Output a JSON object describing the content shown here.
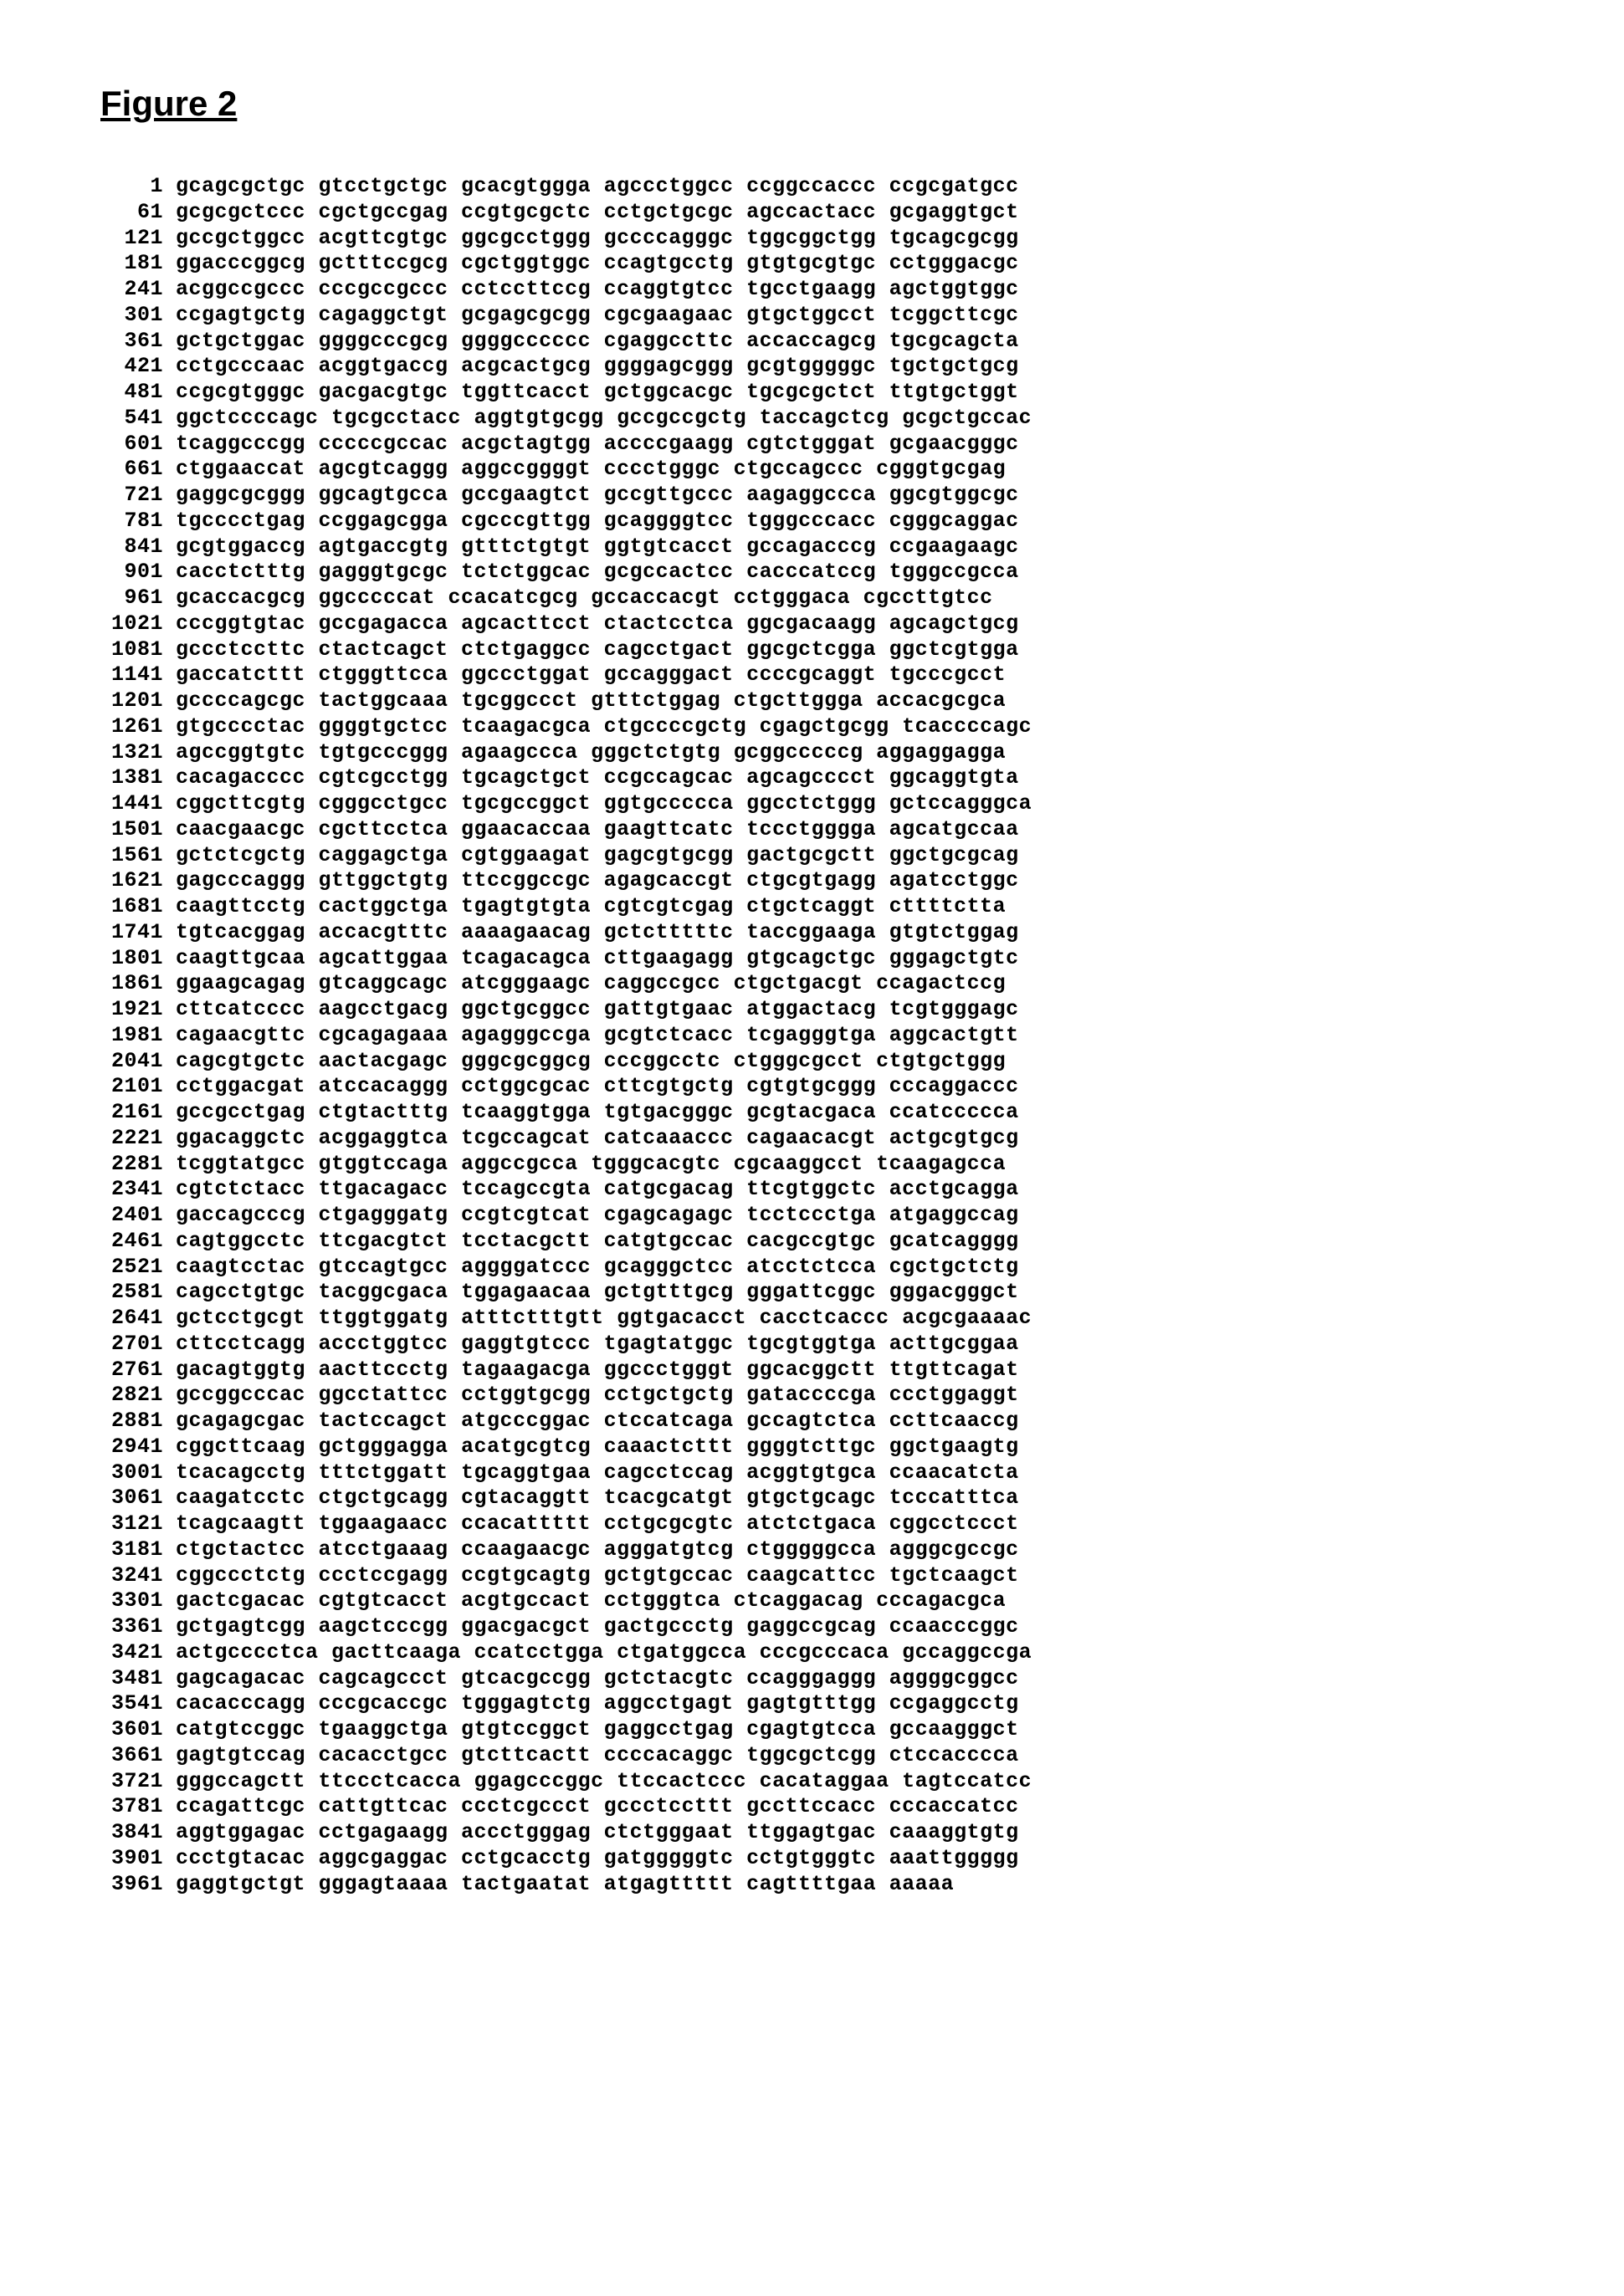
{
  "figure": {
    "title": "Figure 2",
    "font_family_title": "Arial",
    "font_family_seq": "Courier New",
    "title_fontsize": 42,
    "seq_fontsize": 25,
    "background_color": "#ffffff",
    "text_color": "#000000",
    "block_size": 10,
    "blocks_per_row": 6,
    "rows": [
      {
        "pos": 1,
        "blocks": [
          "gcagcgctgc",
          "gtcctgctgc",
          "gcacgtggga",
          "agccctggcc",
          "ccggccaccc",
          "ccgcgatgcc"
        ]
      },
      {
        "pos": 61,
        "blocks": [
          "gcgcgctccc",
          "cgctgccgag",
          "ccgtgcgctc",
          "cctgctgcgc",
          "agccactacc",
          "gcgaggtgct"
        ]
      },
      {
        "pos": 121,
        "blocks": [
          "gccgctggcc",
          "acgttcgtgc",
          "ggcgcctggg",
          "gccccagggc",
          "tggcggctgg",
          "tgcagcgcgg"
        ]
      },
      {
        "pos": 181,
        "blocks": [
          "ggacccggcg",
          "gctttccgcg",
          "cgctggtggc",
          "ccagtgcctg",
          "gtgtgcgtgc",
          "cctgggacgc"
        ]
      },
      {
        "pos": 241,
        "blocks": [
          "acggccgccc",
          "cccgccgccc",
          "cctccttccg",
          "ccaggtgtcc",
          "tgcctgaagg",
          "agctggtggc"
        ]
      },
      {
        "pos": 301,
        "blocks": [
          "ccgagtgctg",
          "cagaggctgt",
          "gcgagcgcgg",
          "cgcgaagaac",
          "gtgctggcct",
          "tcggcttcgc"
        ]
      },
      {
        "pos": 361,
        "blocks": [
          "gctgctggac",
          "ggggcccgcg",
          "ggggcccccc",
          "cgaggccttc",
          "accaccagcg",
          "tgcgcagcta"
        ]
      },
      {
        "pos": 421,
        "blocks": [
          "cctgcccaac",
          "acggtgaccg",
          "acgcactgcg",
          "ggggagcggg",
          "gcgtgggggc",
          "tgctgctgcg"
        ]
      },
      {
        "pos": 481,
        "blocks": [
          "ccgcgtgggc",
          "gacgacgtgc",
          "tggttcacct",
          "gctggcacgc",
          "tgcgcgctct",
          "ttgtgctggt"
        ]
      },
      {
        "pos": 541,
        "blocks": [
          "ggctccccagc",
          "tgcgcctacc",
          "aggtgtgcgg",
          "gccgccgctg",
          "taccagctcg",
          "gcgctgccac"
        ]
      },
      {
        "pos": 601,
        "blocks": [
          "tcaggcccgg",
          "cccccgccac",
          "acgctagtgg",
          "accccgaagg",
          "cgtctgggat",
          "gcgaacgggc"
        ]
      },
      {
        "pos": 661,
        "blocks": [
          "ctggaaccat",
          "agcgtcaggg",
          "aggccggggt",
          "cccctgggc",
          "ctgccagccc",
          "cgggtgcgag"
        ]
      },
      {
        "pos": 721,
        "blocks": [
          "gaggcgcggg",
          "ggcagtgcca",
          "gccgaagtct",
          "gccgttgccc",
          "aagaggccca",
          "ggcgtggcgc"
        ]
      },
      {
        "pos": 781,
        "blocks": [
          "tgcccctgag",
          "ccggagcgga",
          "cgcccgttgg",
          "gcaggggtcc",
          "tgggcccacc",
          "cgggcaggac"
        ]
      },
      {
        "pos": 841,
        "blocks": [
          "gcgtggaccg",
          "agtgaccgtg",
          "gtttctgtgt",
          "ggtgtcacct",
          "gccagacccg",
          "ccgaagaagc"
        ]
      },
      {
        "pos": 901,
        "blocks": [
          "cacctctttg",
          "gagggtgcgc",
          "tctctggcac",
          "gcgccactcc",
          "cacccatccg",
          "tgggccgcca"
        ]
      },
      {
        "pos": 961,
        "blocks": [
          "gcaccacgcg",
          "ggcccccat",
          "ccacatcgcg",
          "gccaccacgt",
          "cctgggaca",
          "cgccttgtcc"
        ]
      },
      {
        "pos": 1021,
        "blocks": [
          "cccggtgtac",
          "gccgagacca",
          "agcacttcct",
          "ctactcctca",
          "ggcgacaagg",
          "agcagctgcg"
        ]
      },
      {
        "pos": 1081,
        "blocks": [
          "gccctccttc",
          "ctactcagct",
          "ctctgaggcc",
          "cagcctgact",
          "ggcgctcgga",
          "ggctcgtgga"
        ]
      },
      {
        "pos": 1141,
        "blocks": [
          "gaccatcttt",
          "ctgggttcca",
          "ggccctggat",
          "gccagggact",
          "ccccgcaggt",
          "tgcccgcct"
        ]
      },
      {
        "pos": 1201,
        "blocks": [
          "gccccagcgc",
          "tactggcaaa",
          "tgcggccct",
          "gtttctggag",
          "ctgcttggga",
          "accacgcgca"
        ]
      },
      {
        "pos": 1261,
        "blocks": [
          "gtgcccctac",
          "ggggtgctcc",
          "tcaagacgca",
          "ctgccccgctg",
          "cgagctgcgg",
          "tcaccccagc"
        ]
      },
      {
        "pos": 1321,
        "blocks": [
          "agccggtgtc",
          "tgtgcccggg",
          "agaagccca",
          "gggctctgtg",
          "gcggcccccg",
          "aggaggagga"
        ]
      },
      {
        "pos": 1381,
        "blocks": [
          "cacagacccc",
          "cgtcgcctgg",
          "tgcagctgct",
          "ccgccagcac",
          "agcagcccct",
          "ggcaggtgta"
        ]
      },
      {
        "pos": 1441,
        "blocks": [
          "cggcttcgtg",
          "cgggcctgcc",
          "tgcgccggct",
          "ggtgccccca",
          "ggcctctggg",
          "gctccagggca"
        ]
      },
      {
        "pos": 1501,
        "blocks": [
          "caacgaacgc",
          "cgcttcctca",
          "ggaacaccaa",
          "gaagttcatc",
          "tccctgggga",
          "agcatgccaa"
        ]
      },
      {
        "pos": 1561,
        "blocks": [
          "gctctcgctg",
          "caggagctga",
          "cgtggaagat",
          "gagcgtgcgg",
          "gactgcgctt",
          "ggctgcgcag"
        ]
      },
      {
        "pos": 1621,
        "blocks": [
          "gagcccaggg",
          "gttggctgtg",
          "ttccggccgc",
          "agagcaccgt",
          "ctgcgtgagg",
          "agatcctggc"
        ]
      },
      {
        "pos": 1681,
        "blocks": [
          "caagttcctg",
          "cactggctga",
          "tgagtgtgta",
          "cgtcgtcgag",
          "ctgctcaggt",
          "cttttctta"
        ]
      },
      {
        "pos": 1741,
        "blocks": [
          "tgtcacggag",
          "accacgtttc",
          "aaaagaacag",
          "gctctttttc",
          "taccggaaga",
          "gtgtctggag"
        ]
      },
      {
        "pos": 1801,
        "blocks": [
          "caagttgcaa",
          "agcattggaa",
          "tcagacagca",
          "cttgaagagg",
          "gtgcagctgc",
          "gggagctgtc"
        ]
      },
      {
        "pos": 1861,
        "blocks": [
          "ggaagcagag",
          "gtcaggcagc",
          "atcgggaagc",
          "caggccgcc",
          "ctgctgacgt",
          "ccagactccg"
        ]
      },
      {
        "pos": 1921,
        "blocks": [
          "cttcatcccc",
          "aagcctgacg",
          "ggctgcggcc",
          "gattgtgaac",
          "atggactacg",
          "tcgtgggagc"
        ]
      },
      {
        "pos": 1981,
        "blocks": [
          "cagaacgttc",
          "cgcagagaaa",
          "agagggccga",
          "gcgtctcacc",
          "tcgagggtga",
          "aggcactgtt"
        ]
      },
      {
        "pos": 2041,
        "blocks": [
          "cagcgtgctc",
          "aactacgagc",
          "gggcgcggcg",
          "cccggcctc",
          "ctgggcgcct",
          "ctgtgctggg"
        ]
      },
      {
        "pos": 2101,
        "blocks": [
          "cctggacgat",
          "atccacaggg",
          "cctggcgcac",
          "cttcgtgctg",
          "cgtgtgcggg",
          "cccaggaccc"
        ]
      },
      {
        "pos": 2161,
        "blocks": [
          "gccgcctgag",
          "ctgtactttg",
          "tcaaggtgga",
          "tgtgacgggc",
          "gcgtacgaca",
          "ccatccccca"
        ]
      },
      {
        "pos": 2221,
        "blocks": [
          "ggacaggctc",
          "acggaggtca",
          "tcgccagcat",
          "catcaaaccc",
          "cagaacacgt",
          "actgcgtgcg"
        ]
      },
      {
        "pos": 2281,
        "blocks": [
          "tcggtatgcc",
          "gtggtccaga",
          "aggccgcca",
          "tgggcacgtc",
          "cgcaaggcct",
          "tcaagagcca"
        ]
      },
      {
        "pos": 2341,
        "blocks": [
          "cgtctctacc",
          "ttgacagacc",
          "tccagccgta",
          "catgcgacag",
          "ttcgtggctc",
          "acctgcagga"
        ]
      },
      {
        "pos": 2401,
        "blocks": [
          "gaccagcccg",
          "ctgagggatg",
          "ccgtcgtcat",
          "cgagcagagc",
          "tcctccctga",
          "atgaggccag"
        ]
      },
      {
        "pos": 2461,
        "blocks": [
          "cagtggcctc",
          "ttcgacgtct",
          "tcctacgctt",
          "catgtgccac",
          "cacgccgtgc",
          "gcatcagggg"
        ]
      },
      {
        "pos": 2521,
        "blocks": [
          "caagtcctac",
          "gtccagtgcc",
          "aggggatccc",
          "gcagggctcc",
          "atcctctcca",
          "cgctgctctg"
        ]
      },
      {
        "pos": 2581,
        "blocks": [
          "cagcctgtgc",
          "tacggcgaca",
          "tggagaacaa",
          "gctgtttgcg",
          "gggattcggc",
          "gggacgggct"
        ]
      },
      {
        "pos": 2641,
        "blocks": [
          "gctcctgcgt",
          "ttggtggatg",
          "atttctttgtt",
          "ggtgacacct",
          "cacctcaccc",
          "acgcgaaaac"
        ]
      },
      {
        "pos": 2701,
        "blocks": [
          "cttcctcagg",
          "accctggtcc",
          "gaggtgtccc",
          "tgagtatggc",
          "tgcgtggtga",
          "acttgcggaa"
        ]
      },
      {
        "pos": 2761,
        "blocks": [
          "gacagtggtg",
          "aacttccctg",
          "tagaagacga",
          "ggccctgggt",
          "ggcacggctt",
          "ttgttcagat"
        ]
      },
      {
        "pos": 2821,
        "blocks": [
          "gccggcccac",
          "ggcctattcc",
          "cctggtgcgg",
          "cctgctgctg",
          "gataccccga",
          "ccctggaggt"
        ]
      },
      {
        "pos": 2881,
        "blocks": [
          "gcagagcgac",
          "tactccagct",
          "atgcccggac",
          "ctccatcaga",
          "gccagtctca",
          "ccttcaaccg"
        ]
      },
      {
        "pos": 2941,
        "blocks": [
          "cggcttcaag",
          "gctgggagga",
          "acatgcgtcg",
          "caaactcttt",
          "ggggtcttgc",
          "ggctgaagtg"
        ]
      },
      {
        "pos": 3001,
        "blocks": [
          "tcacagcctg",
          "tttctggatt",
          "tgcaggtgaa",
          "cagcctccag",
          "acggtgtgca",
          "ccaacatcta"
        ]
      },
      {
        "pos": 3061,
        "blocks": [
          "caagatcctc",
          "ctgctgcagg",
          "cgtacaggtt",
          "tcacgcatgt",
          "gtgctgcagc",
          "tcccatttca"
        ]
      },
      {
        "pos": 3121,
        "blocks": [
          "tcagcaagtt",
          "tggaagaacc",
          "ccacattttt",
          "cctgcgcgtc",
          "atctctgaca",
          "cggcctccct"
        ]
      },
      {
        "pos": 3181,
        "blocks": [
          "ctgctactcc",
          "atcctgaaag",
          "ccaagaacgc",
          "agggatgtcg",
          "ctgggggcca",
          "agggcgccgc"
        ]
      },
      {
        "pos": 3241,
        "blocks": [
          "cggccctctg",
          "ccctccgagg",
          "ccgtgcagtg",
          "gctgtgccac",
          "caagcattcc",
          "tgctcaagct"
        ]
      },
      {
        "pos": 3301,
        "blocks": [
          "gactcgacac",
          "cgtgtcacct",
          "acgtgccact",
          "cctgggtca",
          "ctcaggacag",
          "cccagacgca"
        ]
      },
      {
        "pos": 3361,
        "blocks": [
          "gctgagtcgg",
          "aagctcccgg",
          "ggacgacgct",
          "gactgccctg",
          "gaggccgcag",
          "ccaacccggc"
        ]
      },
      {
        "pos": 3421,
        "blocks": [
          "actgcccctca",
          "gacttcaaga",
          "ccatcctgga",
          "ctgatggcca",
          "cccgcccaca",
          "gccaggccga"
        ]
      },
      {
        "pos": 3481,
        "blocks": [
          "gagcagacac",
          "cagcagccct",
          "gtcacgccgg",
          "gctctacgtc",
          "ccagggaggg",
          "aggggcggcc"
        ]
      },
      {
        "pos": 3541,
        "blocks": [
          "cacacccagg",
          "cccgcaccgc",
          "tgggagtctg",
          "aggcctgagt",
          "gagtgtttgg",
          "ccgaggcctg"
        ]
      },
      {
        "pos": 3601,
        "blocks": [
          "catgtccggc",
          "tgaaggctga",
          "gtgtccggct",
          "gaggcctgag",
          "cgagtgtcca",
          "gccaagggct"
        ]
      },
      {
        "pos": 3661,
        "blocks": [
          "gagtgtccag",
          "cacacctgcc",
          "gtcttcactt",
          "ccccacaggc",
          "tggcgctcgg",
          "ctccacccca"
        ]
      },
      {
        "pos": 3721,
        "blocks": [
          "gggccagctt",
          "ttccctcacca",
          "ggagcccggc",
          "ttccactccc",
          "cacataggaa",
          "tagtccatcc"
        ]
      },
      {
        "pos": 3781,
        "blocks": [
          "ccagattcgc",
          "cattgttcac",
          "ccctcgccct",
          "gccctccttt",
          "gccttccacc",
          "cccaccatcc"
        ]
      },
      {
        "pos": 3841,
        "blocks": [
          "aggtggagac",
          "cctgagaagg",
          "accctgggag",
          "ctctgggaat",
          "ttggagtgac",
          "caaaggtgtg"
        ]
      },
      {
        "pos": 3901,
        "blocks": [
          "ccctgtacac",
          "aggcgaggac",
          "cctgcacctg",
          "gatgggggtc",
          "cctgtgggtc",
          "aaattggggg"
        ]
      },
      {
        "pos": 3961,
        "blocks": [
          "gaggtgctgt",
          "gggagtaaaa",
          "tactgaatat",
          "atgagttttt",
          "cagttttgaa",
          "aaaaa"
        ]
      }
    ]
  }
}
